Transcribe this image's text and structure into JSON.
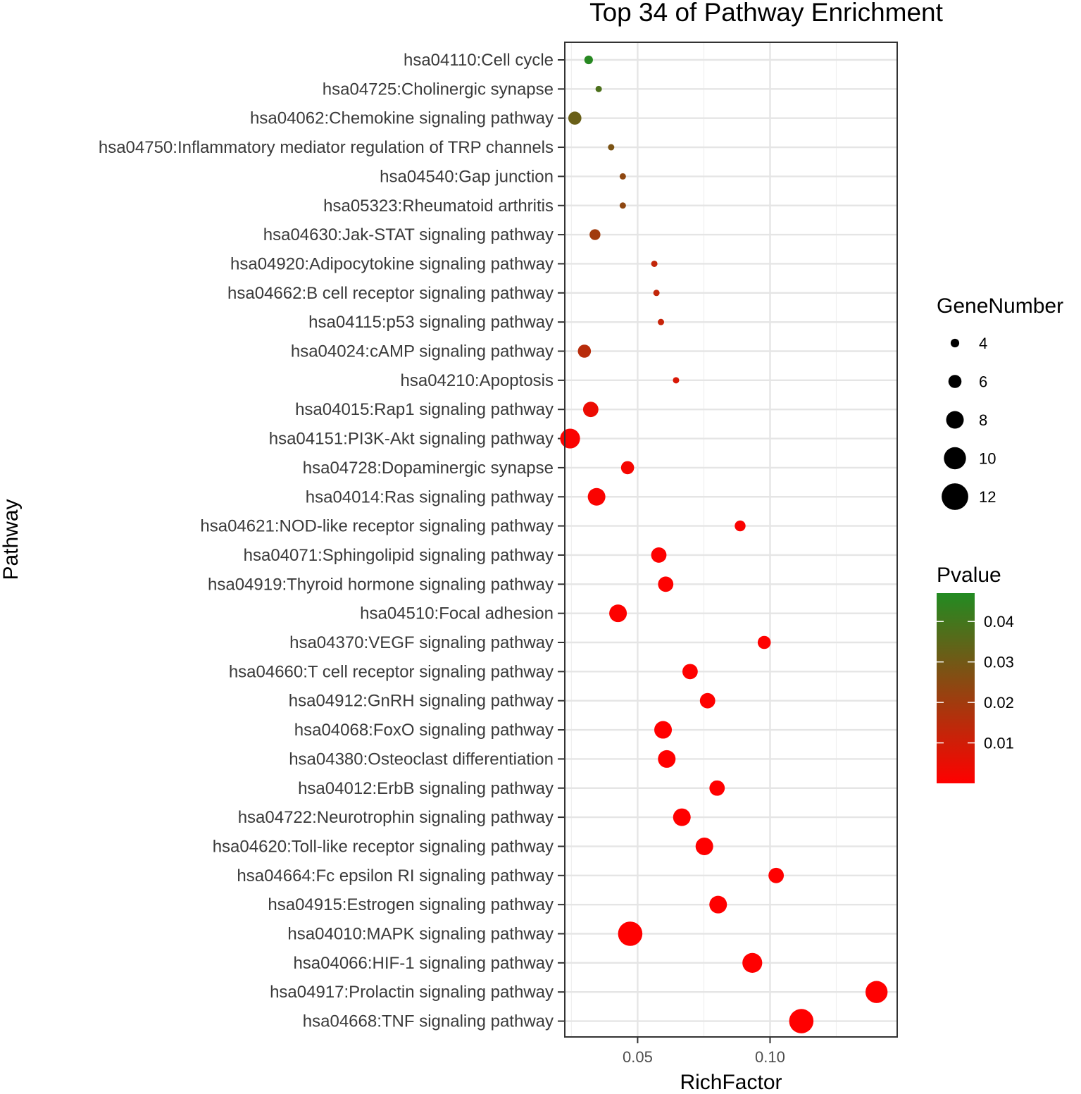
{
  "chart_data": {
    "type": "scatter",
    "title": "Top 34 of Pathway Enrichment",
    "xlabel": "RichFactor",
    "ylabel": "Pathway",
    "xlim": [
      0.0225,
      0.148
    ],
    "xticks": [
      0.05,
      0.1
    ],
    "xtick_labels": [
      "0.05",
      "0.10"
    ],
    "grid": true,
    "pathways": [
      "hsa04110:Cell cycle",
      "hsa04725:Cholinergic synapse",
      "hsa04062:Chemokine signaling pathway",
      "hsa04750:Inflammatory mediator regulation of TRP channels",
      "hsa04540:Gap junction",
      "hsa05323:Rheumatoid arthritis",
      "hsa04630:Jak-STAT signaling pathway",
      "hsa04920:Adipocytokine signaling pathway",
      "hsa04662:B cell receptor signaling pathway",
      "hsa04115:p53 signaling pathway",
      "hsa04024:cAMP signaling pathway",
      "hsa04210:Apoptosis",
      "hsa04015:Rap1 signaling pathway",
      "hsa04151:PI3K-Akt signaling pathway",
      "hsa04728:Dopaminergic synapse",
      "hsa04014:Ras signaling pathway",
      "hsa04621:NOD-like receptor signaling pathway",
      "hsa04071:Sphingolipid signaling pathway",
      "hsa04919:Thyroid hormone signaling pathway",
      "hsa04510:Focal adhesion",
      "hsa04370:VEGF signaling pathway",
      "hsa04660:T cell receptor signaling pathway",
      "hsa04912:GnRH signaling pathway",
      "hsa04068:FoxO signaling pathway",
      "hsa04380:Osteoclast differentiation",
      "hsa04012:ErbB signaling pathway",
      "hsa04722:Neurotrophin signaling pathway",
      "hsa04620:Toll-like receptor signaling pathway",
      "hsa04664:Fc epsilon RI signaling pathway",
      "hsa04915:Estrogen signaling pathway",
      "hsa04010:MAPK signaling pathway",
      "hsa04066:HIF-1 signaling pathway",
      "hsa04917:Prolactin signaling pathway",
      "hsa04668:TNF signaling pathway"
    ],
    "rich_factor": [
      0.0315,
      0.0353,
      0.0263,
      0.04,
      0.0444,
      0.0444,
      0.0339,
      0.0563,
      0.0571,
      0.0588,
      0.0299,
      0.0645,
      0.0323,
      0.0245,
      0.0462,
      0.0345,
      0.0887,
      0.058,
      0.0606,
      0.0426,
      0.0978,
      0.0698,
      0.0764,
      0.0596,
      0.061,
      0.08,
      0.0667,
      0.0752,
      0.1023,
      0.0804,
      0.0472,
      0.0933,
      0.1402,
      0.1118
    ],
    "gene_number": [
      4,
      3,
      6,
      3,
      3,
      3,
      5,
      3,
      3,
      3,
      6,
      3,
      7,
      9,
      6,
      8,
      5,
      7,
      7,
      8,
      6,
      7,
      7,
      8,
      8,
      7,
      8,
      8,
      7,
      8,
      11,
      9,
      10,
      11
    ],
    "pvalue": [
      0.046,
      0.038,
      0.032,
      0.028,
      0.024,
      0.024,
      0.02,
      0.013,
      0.013,
      0.012,
      0.015,
      0.008,
      0.004,
      0.001,
      0.002,
      0.001,
      0.001,
      0.0005,
      0.0005,
      0.0005,
      0.0003,
      0.0002,
      0.0002,
      0.0001,
      0.0001,
      0.0001,
      0.0001,
      0.0001,
      0.0001,
      5e-05,
      3e-05,
      2e-05,
      1e-05,
      5e-06
    ],
    "legend_size": {
      "title": "GeneNumber",
      "values": [
        4,
        6,
        8,
        10,
        12
      ],
      "labels": [
        "4",
        "6",
        "8",
        "10",
        "12"
      ]
    },
    "legend_color": {
      "title": "Pvalue",
      "range": [
        0.0,
        0.047
      ],
      "ticks": [
        0.04,
        0.03,
        0.02,
        0.01
      ],
      "labels": [
        "0.04",
        "0.03",
        "0.02",
        "0.01"
      ],
      "low_color": "#ff0000",
      "high_color": "#228b22"
    }
  }
}
